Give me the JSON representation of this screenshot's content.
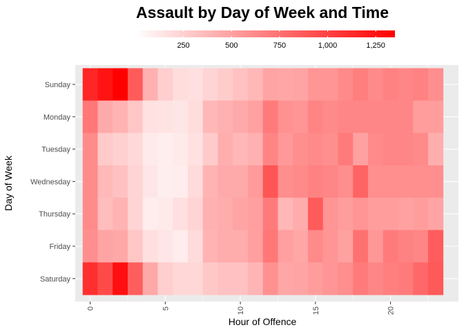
{
  "chart_data": {
    "type": "heatmap",
    "title": "Assault by Day of Week and Time",
    "xlabel": "Hour of Offence",
    "ylabel": "Day of Week",
    "x": [
      0,
      1,
      2,
      3,
      4,
      5,
      6,
      7,
      8,
      9,
      10,
      11,
      12,
      13,
      14,
      15,
      16,
      17,
      18,
      19,
      20,
      21,
      22,
      23
    ],
    "x_ticks": [
      0,
      5,
      10,
      15,
      20
    ],
    "x_tick_labels": [
      "0",
      "5",
      "10",
      "15",
      "20"
    ],
    "xlim": [
      -0.5,
      23.5
    ],
    "y_categories": [
      "Sunday",
      "Monday",
      "Tuesday",
      "Wednesday",
      "Thursday",
      "Friday",
      "Saturday"
    ],
    "values": [
      [
        1150,
        1250,
        1370,
        870,
        420,
        260,
        180,
        170,
        230,
        270,
        330,
        380,
        480,
        470,
        480,
        560,
        560,
        620,
        680,
        620,
        660,
        640,
        660,
        600
      ],
      [
        720,
        450,
        400,
        300,
        160,
        150,
        130,
        180,
        380,
        420,
        450,
        500,
        700,
        580,
        560,
        650,
        620,
        640,
        640,
        640,
        640,
        640,
        520,
        520
      ],
      [
        620,
        280,
        250,
        200,
        110,
        90,
        110,
        160,
        280,
        430,
        380,
        420,
        650,
        540,
        600,
        620,
        600,
        700,
        500,
        620,
        640,
        640,
        620,
        430
      ],
      [
        620,
        370,
        330,
        230,
        130,
        90,
        100,
        190,
        400,
        450,
        450,
        530,
        900,
        600,
        620,
        660,
        640,
        600,
        820,
        600,
        600,
        600,
        600,
        600
      ],
      [
        620,
        350,
        400,
        230,
        100,
        110,
        170,
        230,
        420,
        440,
        480,
        510,
        700,
        380,
        440,
        870,
        560,
        520,
        560,
        520,
        520,
        500,
        520,
        480
      ],
      [
        600,
        480,
        460,
        300,
        170,
        130,
        100,
        190,
        400,
        440,
        440,
        510,
        720,
        510,
        470,
        620,
        560,
        500,
        750,
        550,
        700,
        660,
        640,
        860
      ],
      [
        1100,
        960,
        1270,
        850,
        460,
        260,
        210,
        210,
        290,
        330,
        330,
        390,
        580,
        470,
        480,
        520,
        560,
        600,
        700,
        640,
        680,
        700,
        800,
        880
      ]
    ],
    "legend": {
      "position": "top",
      "min": 0,
      "max": 1350,
      "ticks": [
        250,
        500,
        750,
        1000,
        1250
      ],
      "tick_labels": [
        "250",
        "500",
        "750",
        "1,000",
        "1,250"
      ],
      "low_color": "#ffffff",
      "high_color": "#ff0000"
    },
    "panel_background": "#ebebeb",
    "grid": true
  }
}
